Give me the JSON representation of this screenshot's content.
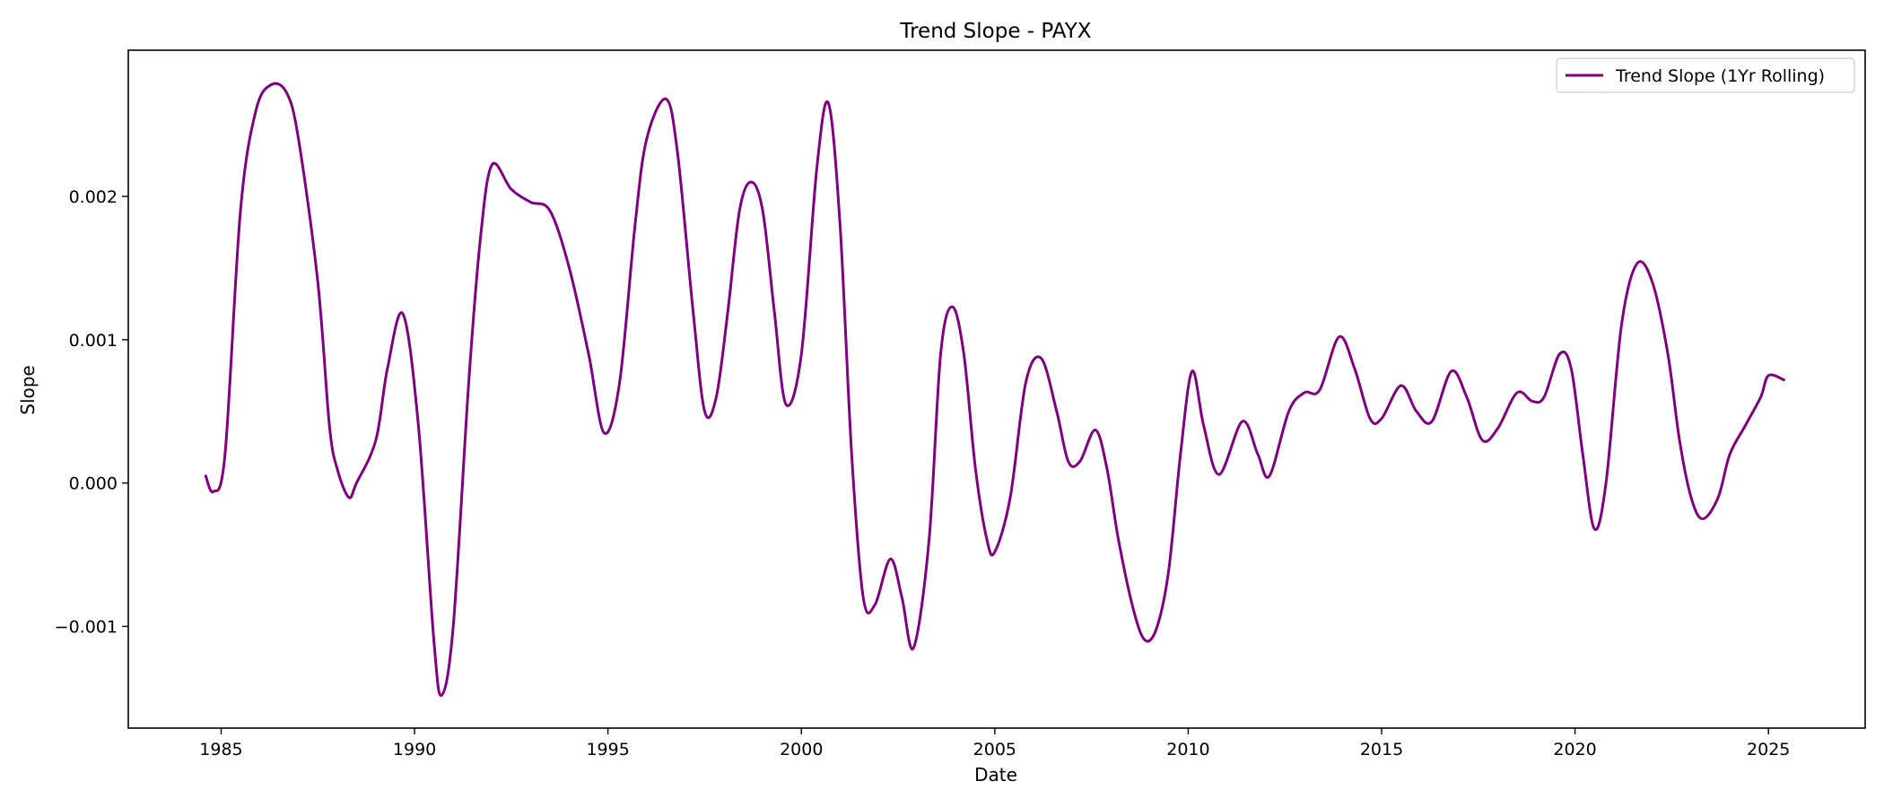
{
  "chart_data": {
    "type": "line",
    "title": "Trend Slope - PAYX",
    "xlabel": "Date",
    "ylabel": "Slope",
    "xlim": [
      1982.6,
      2027.5
    ],
    "ylim": [
      -0.00171,
      0.00302
    ],
    "xticks": [
      1985,
      1990,
      1995,
      2000,
      2005,
      2010,
      2015,
      2020,
      2025
    ],
    "xtick_labels": [
      "1985",
      "1990",
      "1995",
      "2000",
      "2005",
      "2010",
      "2015",
      "2020",
      "2025"
    ],
    "yticks": [
      -0.001,
      0.0,
      0.001,
      0.002
    ],
    "ytick_labels": [
      "−0.001",
      "0.000",
      "0.001",
      "0.002"
    ],
    "grid": false,
    "legend_position": "top-right",
    "series": [
      {
        "name": "Trend Slope (1Yr Rolling)",
        "color": "#800080",
        "points": [
          [
            1984.6,
            5e-05
          ],
          [
            1984.8,
            -6e-05
          ],
          [
            1985.1,
            0.0002
          ],
          [
            1985.5,
            0.0019
          ],
          [
            1985.9,
            0.0026
          ],
          [
            1986.3,
            0.00278
          ],
          [
            1986.7,
            0.00272
          ],
          [
            1987.0,
            0.0024
          ],
          [
            1987.5,
            0.0014
          ],
          [
            1987.8,
            0.0004
          ],
          [
            1988.0,
            0.0001
          ],
          [
            1988.3,
            -0.0001
          ],
          [
            1988.5,
            0.0
          ],
          [
            1989.0,
            0.0003
          ],
          [
            1989.3,
            0.0008
          ],
          [
            1989.7,
            0.00118
          ],
          [
            1990.1,
            0.0004
          ],
          [
            1990.5,
            -0.0011
          ],
          [
            1990.7,
            -0.00148
          ],
          [
            1991.0,
            -0.001
          ],
          [
            1991.4,
            0.0007
          ],
          [
            1991.7,
            0.0017
          ],
          [
            1992.0,
            0.00222
          ],
          [
            1992.5,
            0.00205
          ],
          [
            1993.0,
            0.00196
          ],
          [
            1993.5,
            0.0019
          ],
          [
            1994.0,
            0.0015
          ],
          [
            1994.5,
            0.0009
          ],
          [
            1994.9,
            0.00035
          ],
          [
            1995.3,
            0.0007
          ],
          [
            1995.7,
            0.0018
          ],
          [
            1996.0,
            0.0024
          ],
          [
            1996.5,
            0.00268
          ],
          [
            1996.8,
            0.0023
          ],
          [
            1997.2,
            0.0012
          ],
          [
            1997.5,
            0.0005
          ],
          [
            1997.8,
            0.0006
          ],
          [
            1998.1,
            0.0012
          ],
          [
            1998.4,
            0.0019
          ],
          [
            1998.7,
            0.0021
          ],
          [
            1999.0,
            0.0019
          ],
          [
            1999.3,
            0.0012
          ],
          [
            1999.6,
            0.00055
          ],
          [
            2000.0,
            0.0009
          ],
          [
            2000.4,
            0.0022
          ],
          [
            2000.7,
            0.00265
          ],
          [
            2001.0,
            0.0018
          ],
          [
            2001.3,
            0.0002
          ],
          [
            2001.6,
            -0.0008
          ],
          [
            2001.9,
            -0.00085
          ],
          [
            2002.3,
            -0.00053
          ],
          [
            2002.6,
            -0.0008
          ],
          [
            2002.9,
            -0.00115
          ],
          [
            2003.3,
            -0.0004
          ],
          [
            2003.6,
            0.0009
          ],
          [
            2003.9,
            0.00123
          ],
          [
            2004.2,
            0.0009
          ],
          [
            2004.5,
            0.0001
          ],
          [
            2004.8,
            -0.0004
          ],
          [
            2005.0,
            -0.00048
          ],
          [
            2005.4,
            -0.0001
          ],
          [
            2005.8,
            0.0007
          ],
          [
            2006.2,
            0.00087
          ],
          [
            2006.6,
            0.0005
          ],
          [
            2006.9,
            0.00015
          ],
          [
            2007.2,
            0.00015
          ],
          [
            2007.6,
            0.00037
          ],
          [
            2007.9,
            0.0001
          ],
          [
            2008.2,
            -0.0004
          ],
          [
            2008.6,
            -0.0009
          ],
          [
            2008.9,
            -0.0011
          ],
          [
            2009.2,
            -0.001
          ],
          [
            2009.5,
            -0.0006
          ],
          [
            2009.8,
            0.0002
          ],
          [
            2010.1,
            0.00078
          ],
          [
            2010.4,
            0.0004
          ],
          [
            2010.8,
            6e-05
          ],
          [
            2011.4,
            0.00043
          ],
          [
            2011.8,
            0.0002
          ],
          [
            2012.1,
            5e-05
          ],
          [
            2012.6,
            0.0005
          ],
          [
            2013.0,
            0.00063
          ],
          [
            2013.4,
            0.00065
          ],
          [
            2013.9,
            0.00102
          ],
          [
            2014.3,
            0.0008
          ],
          [
            2014.7,
            0.00045
          ],
          [
            2015.0,
            0.00045
          ],
          [
            2015.5,
            0.00068
          ],
          [
            2015.9,
            0.0005
          ],
          [
            2016.3,
            0.00043
          ],
          [
            2016.8,
            0.00078
          ],
          [
            2017.2,
            0.0006
          ],
          [
            2017.6,
            0.0003
          ],
          [
            2018.0,
            0.00038
          ],
          [
            2018.5,
            0.00063
          ],
          [
            2018.9,
            0.00057
          ],
          [
            2019.2,
            0.0006
          ],
          [
            2019.6,
            0.0009
          ],
          [
            2019.9,
            0.0008
          ],
          [
            2020.2,
            0.0002
          ],
          [
            2020.5,
            -0.00032
          ],
          [
            2020.8,
            0.0
          ],
          [
            2021.2,
            0.0011
          ],
          [
            2021.6,
            0.00153
          ],
          [
            2022.0,
            0.0014
          ],
          [
            2022.4,
            0.0009
          ],
          [
            2022.7,
            0.0003
          ],
          [
            2023.0,
            -0.0001
          ],
          [
            2023.3,
            -0.00025
          ],
          [
            2023.7,
            -0.0001
          ],
          [
            2024.0,
            0.0002
          ],
          [
            2024.4,
            0.0004
          ],
          [
            2024.8,
            0.0006
          ],
          [
            2025.0,
            0.00075
          ],
          [
            2025.4,
            0.00072
          ]
        ]
      }
    ]
  }
}
